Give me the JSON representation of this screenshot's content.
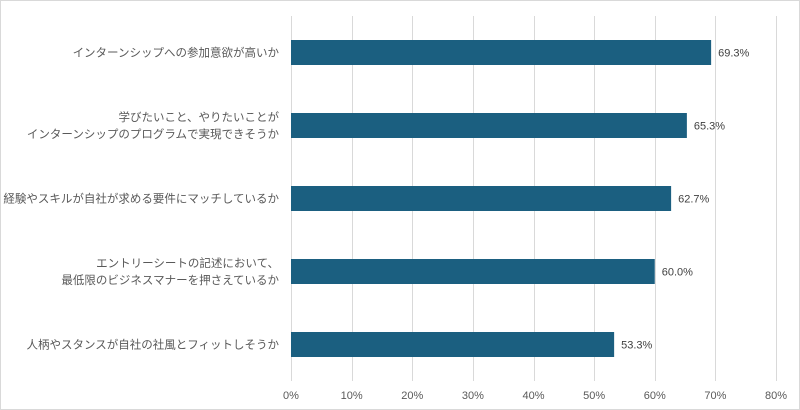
{
  "chart_data": {
    "type": "bar",
    "orientation": "horizontal",
    "categories": [
      [
        "インターンシップへの参加意欲が高いか"
      ],
      [
        "学びたいこと、やりたいことが",
        "インターンシップのプログラムで実現できそうか"
      ],
      [
        "経験やスキルが自社が求める要件にマッチしているか"
      ],
      [
        "エントリーシートの記述において、",
        "最低限のビジネスマナーを押さえているか"
      ],
      [
        "人柄やスタンスが自社の社風とフィットしそうか"
      ]
    ],
    "values": [
      69.3,
      65.3,
      62.7,
      60.0,
      53.3
    ],
    "data_labels": [
      "69.3%",
      "65.3%",
      "62.7%",
      "60.0%",
      "53.3%"
    ],
    "xlim": [
      0,
      80
    ],
    "x_ticks": [
      0,
      10,
      20,
      30,
      40,
      50,
      60,
      70,
      80
    ],
    "x_tick_labels": [
      "0%",
      "10%",
      "20%",
      "30%",
      "40%",
      "50%",
      "60%",
      "70%",
      "80%"
    ],
    "bar_color": "#1b5f80",
    "grid": true
  }
}
